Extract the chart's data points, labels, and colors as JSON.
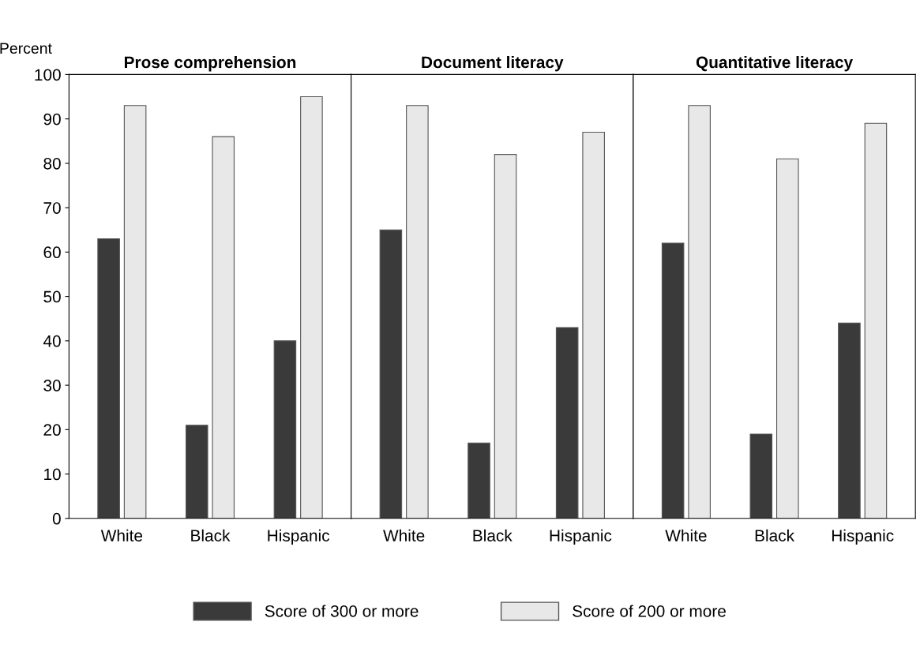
{
  "chart_data": [
    {
      "type": "bar",
      "title": "Prose comprehension",
      "ylabel": "Percent",
      "categories": [
        "White",
        "Black",
        "Hispanic"
      ],
      "ylim": [
        0,
        100
      ],
      "yticks": [
        0,
        10,
        20,
        30,
        40,
        50,
        60,
        70,
        80,
        90,
        100
      ],
      "grid": false,
      "legend": "bottom",
      "series": [
        {
          "name": "Score of 300 or more",
          "color": "#3a3a3a",
          "values": [
            63,
            21,
            40
          ]
        },
        {
          "name": "Score of 200 or more",
          "color": "#e8e8e8",
          "values": [
            93,
            86,
            95
          ]
        }
      ]
    },
    {
      "type": "bar",
      "title": "Document literacy",
      "categories": [
        "White",
        "Black",
        "Hispanic"
      ],
      "ylim": [
        0,
        100
      ],
      "tick_labels": "x",
      "grid": false,
      "series": [
        {
          "color": "#3a3a3a",
          "values": [
            65,
            17,
            43
          ]
        },
        {
          "color": "#e8e8e8",
          "values": [
            93,
            82,
            87
          ]
        }
      ]
    },
    {
      "type": "bar",
      "title": "Quantitative literacy",
      "categories": [
        "White",
        "Black",
        "Hispanic"
      ],
      "ylim": [
        0,
        100
      ],
      "tick_labels": "x",
      "grid": false,
      "series": [
        {
          "color": "#3a3a3a",
          "values": [
            62,
            19,
            44
          ]
        },
        {
          "color": "#e8e8e8",
          "values": [
            93,
            81,
            89
          ]
        }
      ]
    }
  ]
}
